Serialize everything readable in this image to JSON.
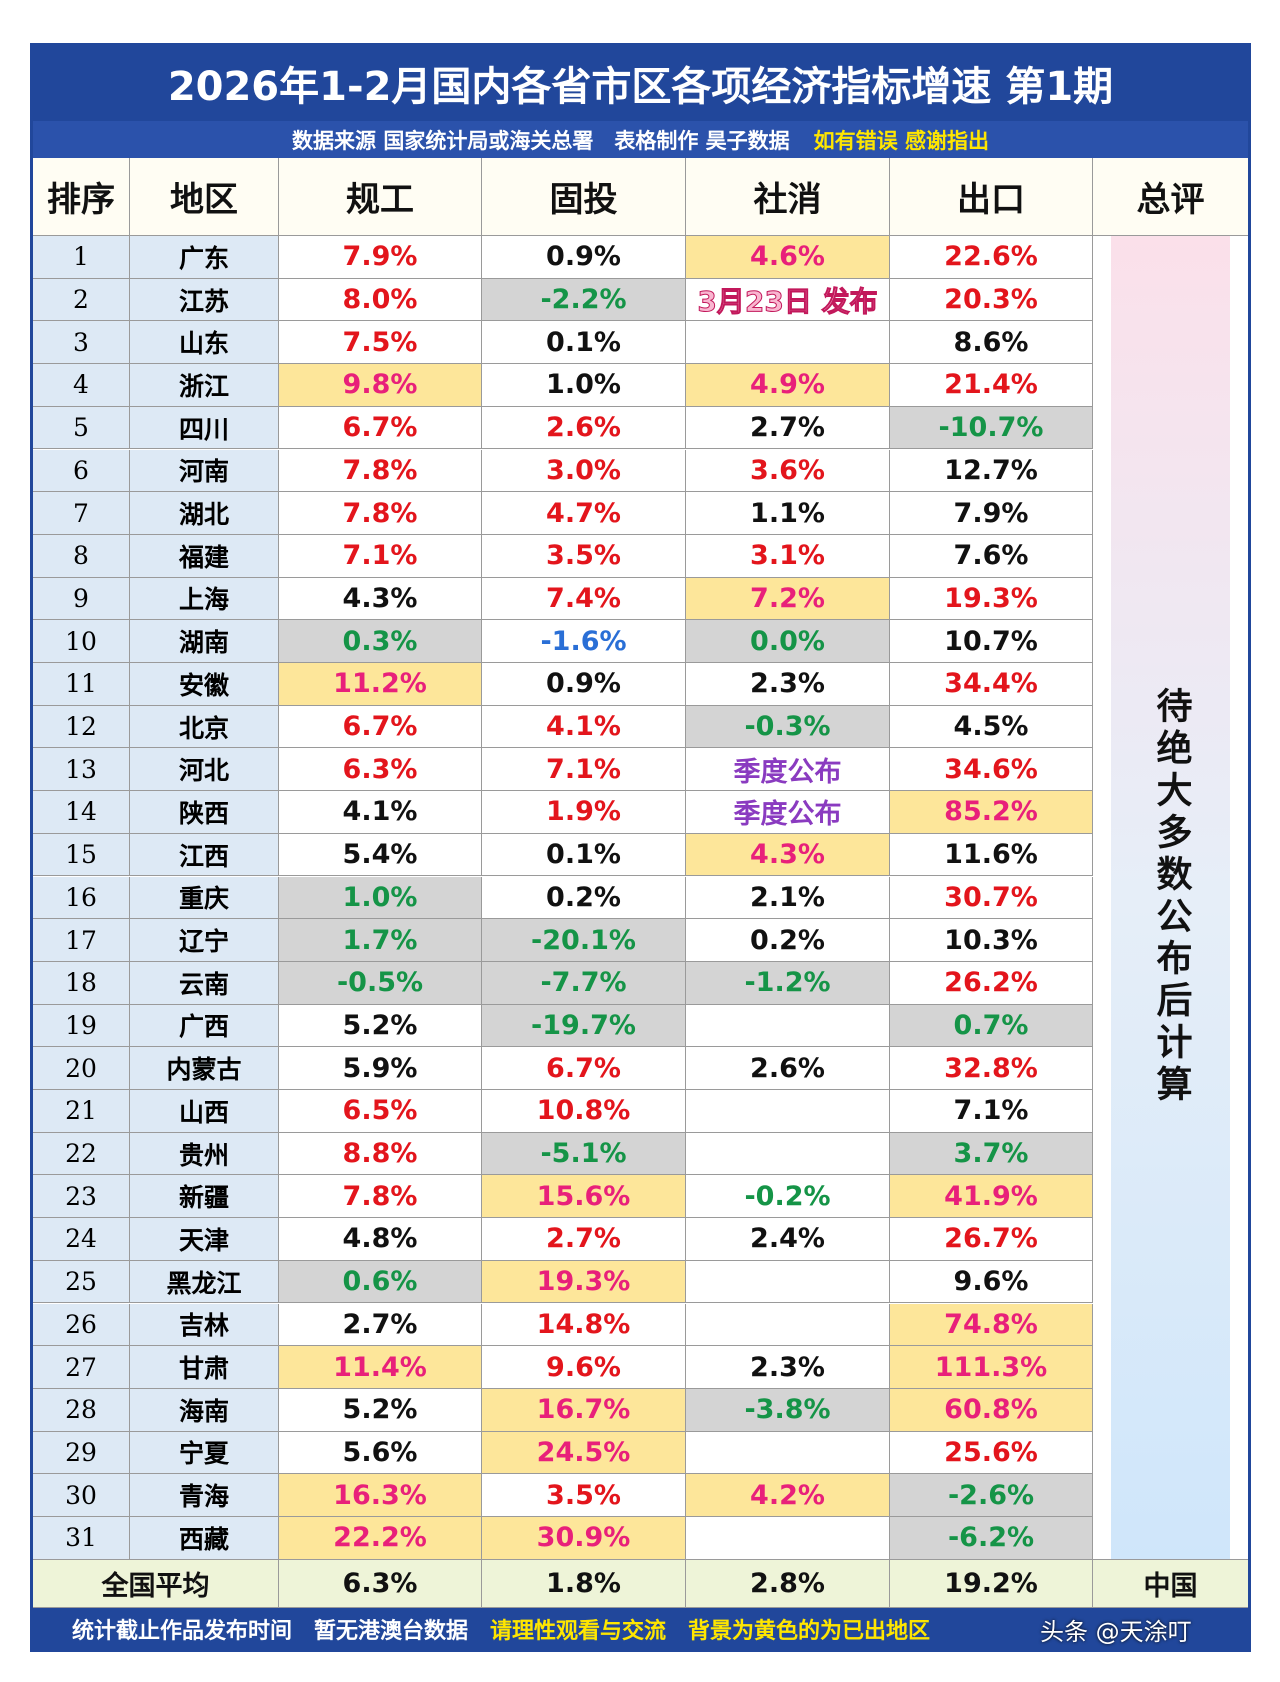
{
  "title": "2026年1-2月国内各省市区各项经济指标增速 第1期",
  "subtitle": {
    "source": "数据来源 国家统计局或海关总署　表格制作 昊子数据",
    "note": "如有错误 感谢指出"
  },
  "table": {
    "headers": [
      "排序",
      "地区",
      "规工",
      "固投",
      "社消",
      "出口",
      "总评"
    ],
    "rows": [
      {
        "rank": "1",
        "region": "广东",
        "cells": [
          {
            "text": "7.9%",
            "color": "#e3151c"
          },
          {
            "text": "0.9%",
            "color": "#111111"
          },
          {
            "text": "4.6%",
            "color": "#e8207a",
            "bg": "#fde69a"
          },
          {
            "text": "22.6%",
            "color": "#e3151c"
          }
        ]
      },
      {
        "rank": "2",
        "region": "江苏",
        "cells": [
          {
            "text": "8.0%",
            "color": "#e3151c"
          },
          {
            "text": "-2.2%",
            "color": "#159447",
            "bg": "#d4d4d4"
          },
          {
            "text": "3月23日 发布",
            "color": "#f06aa0"
          },
          {
            "text": "20.3%",
            "color": "#e3151c"
          }
        ]
      },
      {
        "rank": "3",
        "region": "山东",
        "cells": [
          {
            "text": "7.5%",
            "color": "#e3151c"
          },
          {
            "text": "0.1%",
            "color": "#111111"
          },
          {
            "text": null
          },
          {
            "text": "8.6%",
            "color": "#111111"
          }
        ]
      },
      {
        "rank": "4",
        "region": "浙江",
        "cells": [
          {
            "text": "9.8%",
            "color": "#e8207a",
            "bg": "#fde69a"
          },
          {
            "text": "1.0%",
            "color": "#111111"
          },
          {
            "text": "4.9%",
            "color": "#e8207a",
            "bg": "#fde69a"
          },
          {
            "text": "21.4%",
            "color": "#e3151c"
          }
        ]
      },
      {
        "rank": "5",
        "region": "四川",
        "cells": [
          {
            "text": "6.7%",
            "color": "#e3151c"
          },
          {
            "text": "2.6%",
            "color": "#e3151c"
          },
          {
            "text": "2.7%",
            "color": "#111111"
          },
          {
            "text": "-10.7%",
            "color": "#159447",
            "bg": "#d4d4d4"
          }
        ]
      },
      {
        "rank": "6",
        "region": "河南",
        "cells": [
          {
            "text": "7.8%",
            "color": "#e3151c"
          },
          {
            "text": "3.0%",
            "color": "#e3151c"
          },
          {
            "text": "3.6%",
            "color": "#e3151c"
          },
          {
            "text": "12.7%",
            "color": "#111111"
          }
        ]
      },
      {
        "rank": "7",
        "region": "湖北",
        "cells": [
          {
            "text": "7.8%",
            "color": "#e3151c"
          },
          {
            "text": "4.7%",
            "color": "#e3151c"
          },
          {
            "text": "1.1%",
            "color": "#111111"
          },
          {
            "text": "7.9%",
            "color": "#111111"
          }
        ]
      },
      {
        "rank": "8",
        "region": "福建",
        "cells": [
          {
            "text": "7.1%",
            "color": "#e3151c"
          },
          {
            "text": "3.5%",
            "color": "#e3151c"
          },
          {
            "text": "3.1%",
            "color": "#e3151c"
          },
          {
            "text": "7.6%",
            "color": "#111111"
          }
        ]
      },
      {
        "rank": "9",
        "region": "上海",
        "cells": [
          {
            "text": "4.3%",
            "color": "#111111"
          },
          {
            "text": "7.4%",
            "color": "#e3151c"
          },
          {
            "text": "7.2%",
            "color": "#e8207a",
            "bg": "#fde69a"
          },
          {
            "text": "19.3%",
            "color": "#e3151c"
          }
        ]
      },
      {
        "rank": "10",
        "region": "湖南",
        "cells": [
          {
            "text": "0.3%",
            "color": "#159447",
            "bg": "#d4d4d4"
          },
          {
            "text": "-1.6%",
            "color": "#2a6fd6"
          },
          {
            "text": "0.0%",
            "color": "#159447",
            "bg": "#d4d4d4"
          },
          {
            "text": "10.7%",
            "color": "#111111"
          }
        ]
      },
      {
        "rank": "11",
        "region": "安徽",
        "cells": [
          {
            "text": "11.2%",
            "color": "#e8207a",
            "bg": "#fde69a"
          },
          {
            "text": "0.9%",
            "color": "#111111"
          },
          {
            "text": "2.3%",
            "color": "#111111"
          },
          {
            "text": "34.4%",
            "color": "#e3151c"
          }
        ]
      },
      {
        "rank": "12",
        "region": "北京",
        "cells": [
          {
            "text": "6.7%",
            "color": "#e3151c"
          },
          {
            "text": "4.1%",
            "color": "#e3151c"
          },
          {
            "text": "-0.3%",
            "color": "#159447",
            "bg": "#d4d4d4"
          },
          {
            "text": "4.5%",
            "color": "#111111"
          }
        ]
      },
      {
        "rank": "13",
        "region": "河北",
        "cells": [
          {
            "text": "6.3%",
            "color": "#e3151c"
          },
          {
            "text": "7.1%",
            "color": "#e3151c"
          },
          {
            "text": "季度公布",
            "color": "#8a3bc0"
          },
          {
            "text": "34.6%",
            "color": "#e3151c"
          }
        ]
      },
      {
        "rank": "14",
        "region": "陕西",
        "cells": [
          {
            "text": "4.1%",
            "color": "#111111"
          },
          {
            "text": "1.9%",
            "color": "#e3151c"
          },
          {
            "text": "季度公布",
            "color": "#8a3bc0"
          },
          {
            "text": "85.2%",
            "color": "#e8207a",
            "bg": "#fde69a"
          }
        ]
      },
      {
        "rank": "15",
        "region": "江西",
        "cells": [
          {
            "text": "5.4%",
            "color": "#111111"
          },
          {
            "text": "0.1%",
            "color": "#111111"
          },
          {
            "text": "4.3%",
            "color": "#e8207a",
            "bg": "#fde69a"
          },
          {
            "text": "11.6%",
            "color": "#111111"
          }
        ]
      },
      {
        "rank": "16",
        "region": "重庆",
        "cells": [
          {
            "text": "1.0%",
            "color": "#159447",
            "bg": "#d4d4d4"
          },
          {
            "text": "0.2%",
            "color": "#111111"
          },
          {
            "text": "2.1%",
            "color": "#111111"
          },
          {
            "text": "30.7%",
            "color": "#e3151c"
          }
        ]
      },
      {
        "rank": "17",
        "region": "辽宁",
        "cells": [
          {
            "text": "1.7%",
            "color": "#159447",
            "bg": "#d4d4d4"
          },
          {
            "text": "-20.1%",
            "color": "#159447",
            "bg": "#d4d4d4"
          },
          {
            "text": "0.2%",
            "color": "#111111"
          },
          {
            "text": "10.3%",
            "color": "#111111"
          }
        ]
      },
      {
        "rank": "18",
        "region": "云南",
        "cells": [
          {
            "text": "-0.5%",
            "color": "#159447",
            "bg": "#d4d4d4"
          },
          {
            "text": "-7.7%",
            "color": "#159447",
            "bg": "#d4d4d4"
          },
          {
            "text": "-1.2%",
            "color": "#159447",
            "bg": "#d4d4d4"
          },
          {
            "text": "26.2%",
            "color": "#e3151c"
          }
        ]
      },
      {
        "rank": "19",
        "region": "广西",
        "cells": [
          {
            "text": "5.2%",
            "color": "#111111"
          },
          {
            "text": "-19.7%",
            "color": "#159447",
            "bg": "#d4d4d4"
          },
          {
            "text": null
          },
          {
            "text": "0.7%",
            "color": "#159447",
            "bg": "#d4d4d4"
          }
        ]
      },
      {
        "rank": "20",
        "region": "内蒙古",
        "cells": [
          {
            "text": "5.9%",
            "color": "#111111"
          },
          {
            "text": "6.7%",
            "color": "#e3151c"
          },
          {
            "text": "2.6%",
            "color": "#111111"
          },
          {
            "text": "32.8%",
            "color": "#e3151c"
          }
        ]
      },
      {
        "rank": "21",
        "region": "山西",
        "cells": [
          {
            "text": "6.5%",
            "color": "#e3151c"
          },
          {
            "text": "10.8%",
            "color": "#e3151c"
          },
          {
            "text": null
          },
          {
            "text": "7.1%",
            "color": "#111111"
          }
        ]
      },
      {
        "rank": "22",
        "region": "贵州",
        "cells": [
          {
            "text": "8.8%",
            "color": "#e3151c"
          },
          {
            "text": "-5.1%",
            "color": "#159447",
            "bg": "#d4d4d4"
          },
          {
            "text": null
          },
          {
            "text": "3.7%",
            "color": "#159447",
            "bg": "#d4d4d4"
          }
        ]
      },
      {
        "rank": "23",
        "region": "新疆",
        "cells": [
          {
            "text": "7.8%",
            "color": "#e3151c"
          },
          {
            "text": "15.6%",
            "color": "#e8207a",
            "bg": "#fde69a"
          },
          {
            "text": "-0.2%",
            "color": "#159447"
          },
          {
            "text": "41.9%",
            "color": "#e8207a",
            "bg": "#fde69a"
          }
        ]
      },
      {
        "rank": "24",
        "region": "天津",
        "cells": [
          {
            "text": "4.8%",
            "color": "#111111"
          },
          {
            "text": "2.7%",
            "color": "#e3151c"
          },
          {
            "text": "2.4%",
            "color": "#111111"
          },
          {
            "text": "26.7%",
            "color": "#e3151c"
          }
        ]
      },
      {
        "rank": "25",
        "region": "黑龙江",
        "cells": [
          {
            "text": "0.6%",
            "color": "#159447",
            "bg": "#d4d4d4"
          },
          {
            "text": "19.3%",
            "color": "#e8207a",
            "bg": "#fde69a"
          },
          {
            "text": null
          },
          {
            "text": "9.6%",
            "color": "#111111"
          }
        ]
      },
      {
        "rank": "26",
        "region": "吉林",
        "cells": [
          {
            "text": "2.7%",
            "color": "#111111"
          },
          {
            "text": "14.8%",
            "color": "#e3151c"
          },
          {
            "text": null
          },
          {
            "text": "74.8%",
            "color": "#e8207a",
            "bg": "#fde69a"
          }
        ]
      },
      {
        "rank": "27",
        "region": "甘肃",
        "cells": [
          {
            "text": "11.4%",
            "color": "#e8207a",
            "bg": "#fde69a"
          },
          {
            "text": "9.6%",
            "color": "#e3151c"
          },
          {
            "text": "2.3%",
            "color": "#111111"
          },
          {
            "text": "111.3%",
            "color": "#e8207a",
            "bg": "#fde69a"
          }
        ]
      },
      {
        "rank": "28",
        "region": "海南",
        "cells": [
          {
            "text": "5.2%",
            "color": "#111111"
          },
          {
            "text": "16.7%",
            "color": "#e8207a",
            "bg": "#fde69a"
          },
          {
            "text": "-3.8%",
            "color": "#159447",
            "bg": "#d4d4d4"
          },
          {
            "text": "60.8%",
            "color": "#e8207a",
            "bg": "#fde69a"
          }
        ]
      },
      {
        "rank": "29",
        "region": "宁夏",
        "cells": [
          {
            "text": "5.6%",
            "color": "#111111"
          },
          {
            "text": "24.5%",
            "color": "#e8207a",
            "bg": "#fde69a"
          },
          {
            "text": null
          },
          {
            "text": "25.6%",
            "color": "#e3151c"
          }
        ]
      },
      {
        "rank": "30",
        "region": "青海",
        "cells": [
          {
            "text": "16.3%",
            "color": "#e8207a",
            "bg": "#fde69a"
          },
          {
            "text": "3.5%",
            "color": "#e3151c"
          },
          {
            "text": "4.2%",
            "color": "#e8207a",
            "bg": "#fde69a"
          },
          {
            "text": "-2.6%",
            "color": "#159447",
            "bg": "#d4d4d4"
          }
        ]
      },
      {
        "rank": "31",
        "region": "西藏",
        "cells": [
          {
            "text": "22.2%",
            "color": "#e8207a",
            "bg": "#fde69a"
          },
          {
            "text": "30.9%",
            "color": "#e8207a",
            "bg": "#fde69a"
          },
          {
            "text": null
          },
          {
            "text": "-6.2%",
            "color": "#159447",
            "bg": "#d4d4d4"
          }
        ]
      }
    ],
    "overall_note": "待绝大多数公布后计算",
    "footer": [
      "全国平均",
      "6.3%",
      "1.8%",
      "2.8%",
      "19.2%",
      "中国"
    ]
  },
  "bottom": {
    "info": "统计截止作品发布时间　暂无港澳台数据",
    "note": "请理性观看与交流　背景为黄色的为已出地区"
  },
  "watermark": "头条 @天涂叮"
}
